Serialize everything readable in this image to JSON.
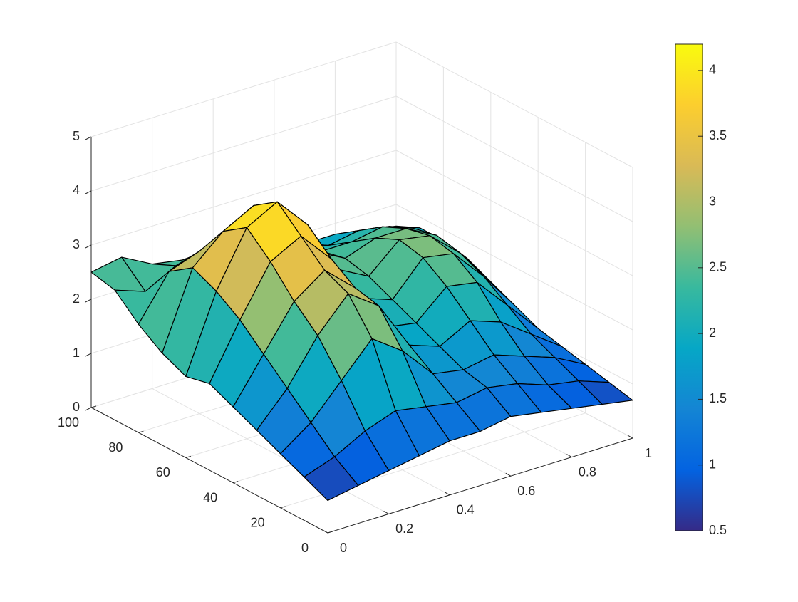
{
  "chart_data": {
    "type": "surface",
    "colormap": "parula",
    "edgecolor": "#000000",
    "grid": true,
    "x": [
      0,
      0.1,
      0.2,
      0.3,
      0.4,
      0.5,
      0.6,
      0.7,
      0.8,
      0.9,
      1
    ],
    "y": [
      0,
      10,
      20,
      30,
      40,
      50,
      60,
      70,
      80,
      90,
      100
    ],
    "z": [
      [
        0.6,
        0.7,
        0.8,
        0.9,
        1.0,
        1.0,
        1.1,
        1.0,
        0.9,
        0.8,
        0.7
      ],
      [
        0.8,
        1.0,
        1.3,
        1.5,
        1.4,
        1.3,
        1.4,
        1.3,
        1.1,
        1.0,
        0.8
      ],
      [
        1.0,
        1.4,
        2.0,
        2.6,
        2.2,
        1.6,
        1.5,
        1.6,
        1.4,
        1.2,
        0.9
      ],
      [
        1.2,
        1.8,
        2.6,
        3.2,
        2.8,
        1.9,
        1.7,
        2.0,
        1.8,
        1.4,
        1.0
      ],
      [
        1.4,
        2.2,
        3.0,
        3.4,
        2.9,
        2.0,
        1.9,
        2.4,
        2.3,
        1.7,
        1.1
      ],
      [
        1.6,
        2.6,
        3.5,
        3.8,
        3.2,
        2.3,
        2.1,
        2.7,
        2.6,
        2.0,
        1.3
      ],
      [
        1.5,
        2.9,
        3.9,
        4.2,
        3.6,
        2.6,
        2.3,
        2.8,
        2.7,
        2.2,
        1.5
      ],
      [
        1.7,
        3.1,
        3.6,
        3.9,
        3.4,
        2.7,
        2.4,
        2.6,
        2.6,
        2.3,
        1.7
      ],
      [
        2.0,
        2.8,
        3.0,
        3.2,
        3.0,
        2.6,
        2.3,
        2.3,
        2.4,
        2.2,
        1.8
      ],
      [
        2.4,
        2.2,
        2.5,
        2.6,
        2.5,
        2.3,
        2.1,
        2.0,
        2.1,
        2.0,
        1.8
      ],
      [
        2.5,
        2.6,
        2.3,
        2.2,
        2.1,
        2.0,
        1.9,
        1.8,
        1.8,
        1.7,
        1.6
      ]
    ],
    "xlim": [
      0,
      1
    ],
    "xticks": [
      0,
      0.2,
      0.4,
      0.6,
      0.8,
      1
    ],
    "ylim": [
      0,
      100
    ],
    "yticks": [
      0,
      20,
      40,
      60,
      80,
      100
    ],
    "zlim": [
      0,
      5
    ],
    "zticks": [
      0,
      1,
      2,
      3,
      4,
      5
    ],
    "clim": [
      0.5,
      4.2
    ],
    "cticks": [
      0.5,
      1,
      1.5,
      2,
      2.5,
      3,
      3.5,
      4
    ]
  }
}
